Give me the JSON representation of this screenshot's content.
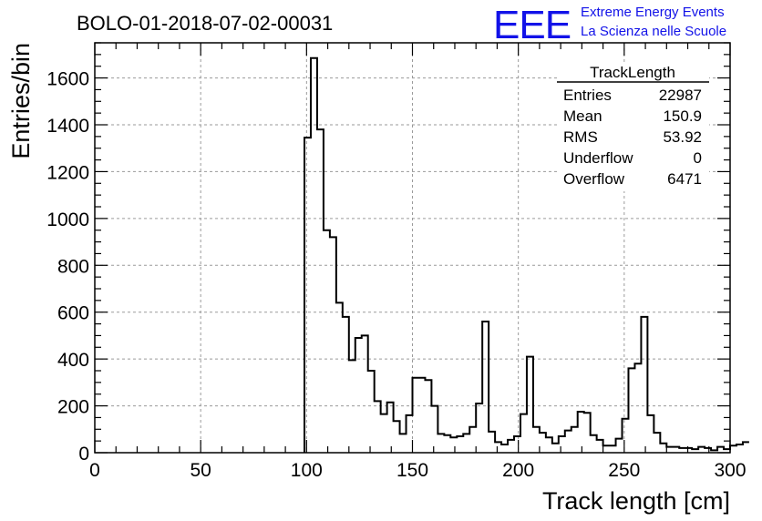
{
  "chart_data": {
    "type": "bar",
    "title": "BOLO-01-2018-07-02-00031",
    "xlabel": "Track length [cm]",
    "ylabel": "Entries/bin",
    "xlim": [
      0,
      300
    ],
    "ylim": [
      0,
      1750
    ],
    "xticks": [
      0,
      50,
      100,
      150,
      200,
      250,
      300
    ],
    "yticks": [
      0,
      200,
      400,
      600,
      800,
      1000,
      1200,
      1400,
      1600
    ],
    "grid": true,
    "bin_width": 3,
    "bin_edges_start": 99,
    "values": [
      1345,
      1685,
      1380,
      950,
      920,
      640,
      580,
      395,
      490,
      500,
      350,
      220,
      165,
      215,
      135,
      80,
      160,
      320,
      320,
      310,
      200,
      80,
      75,
      65,
      70,
      80,
      110,
      210,
      560,
      90,
      45,
      35,
      55,
      70,
      165,
      410,
      110,
      85,
      65,
      40,
      70,
      95,
      110,
      175,
      170,
      75,
      55,
      30,
      30,
      60,
      145,
      360,
      380,
      580,
      160,
      85,
      40,
      25,
      25,
      20,
      20,
      15,
      25,
      20,
      10,
      25,
      15,
      30,
      35,
      45
    ],
    "stats": {
      "name": "TrackLength",
      "rows": [
        {
          "label": "Entries",
          "value": "22987"
        },
        {
          "label": "Mean",
          "value": "150.9"
        },
        {
          "label": "RMS",
          "value": "53.92"
        },
        {
          "label": "Underflow",
          "value": "0"
        },
        {
          "label": "Overflow",
          "value": "6471"
        }
      ]
    },
    "logo": {
      "mark": "EEE",
      "line1": "Extreme Energy Events",
      "line2": "La Scienza nelle Scuole",
      "color": "#1212e8"
    }
  }
}
